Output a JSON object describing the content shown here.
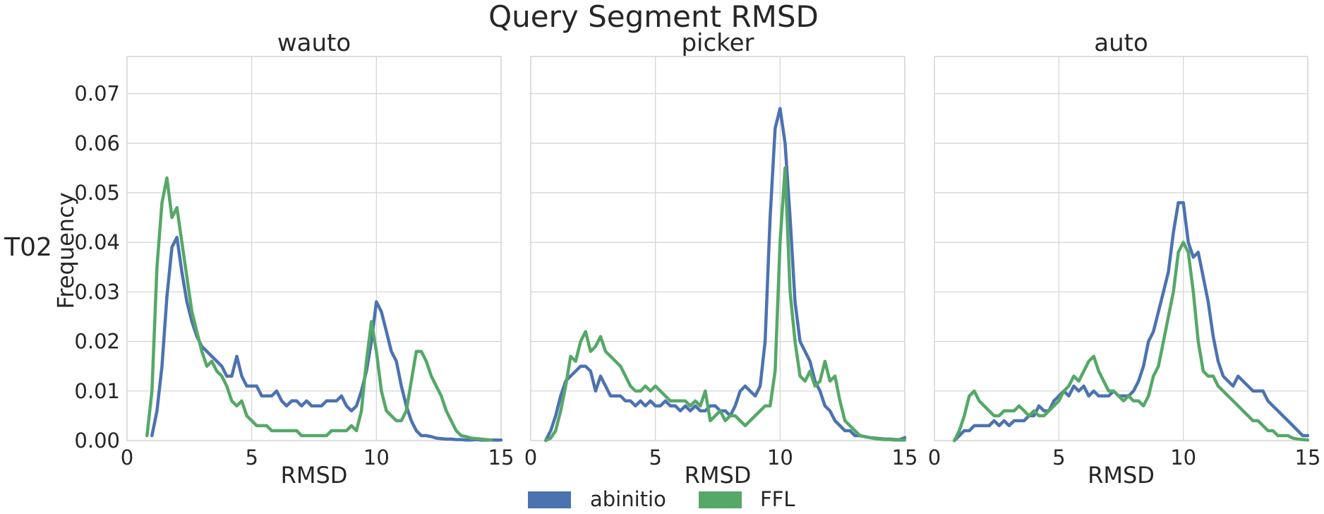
{
  "figure": {
    "title": "Query Segment RMSD",
    "row_label": "T02"
  },
  "colors": {
    "abinitio": "#4C72B0",
    "FFL": "#55A868",
    "grid": "#D3D3D3",
    "text": "#262626"
  },
  "chart_data": [
    {
      "type": "line",
      "title": "wauto",
      "xlabel": "RMSD",
      "ylabel": "Frequency",
      "xlim": [
        0,
        15
      ],
      "ylim": [
        0,
        0.0775
      ],
      "xticks": [
        "0",
        "5",
        "10",
        "15"
      ],
      "yticks": [
        "0.00",
        "0.01",
        "0.02",
        "0.03",
        "0.04",
        "0.05",
        "0.06",
        "0.07"
      ],
      "grid": true,
      "series": [
        {
          "name": "abinitio",
          "x": [
            1.0,
            1.2,
            1.4,
            1.6,
            1.8,
            2.0,
            2.2,
            2.4,
            2.6,
            2.8,
            3.0,
            3.2,
            3.4,
            3.6,
            3.8,
            4.0,
            4.2,
            4.4,
            4.6,
            4.8,
            5.0,
            5.2,
            5.4,
            5.6,
            5.8,
            6.0,
            6.2,
            6.4,
            6.6,
            6.8,
            7.0,
            7.2,
            7.4,
            7.6,
            7.8,
            8.0,
            8.2,
            8.4,
            8.6,
            8.8,
            9.0,
            9.2,
            9.4,
            9.6,
            9.8,
            10.0,
            10.2,
            10.4,
            10.6,
            10.8,
            11.0,
            11.2,
            11.4,
            11.6,
            11.8,
            12.0,
            12.2,
            12.4,
            12.6,
            12.8,
            13.0,
            13.2,
            13.4,
            13.6,
            13.8,
            14.0,
            14.2,
            14.4,
            14.6,
            14.8,
            15.0
          ],
          "y": [
            0.001,
            0.006,
            0.015,
            0.029,
            0.039,
            0.041,
            0.034,
            0.028,
            0.024,
            0.021,
            0.019,
            0.018,
            0.017,
            0.016,
            0.015,
            0.013,
            0.013,
            0.017,
            0.013,
            0.011,
            0.011,
            0.011,
            0.009,
            0.009,
            0.009,
            0.01,
            0.008,
            0.007,
            0.008,
            0.008,
            0.007,
            0.008,
            0.007,
            0.007,
            0.007,
            0.008,
            0.008,
            0.008,
            0.009,
            0.007,
            0.006,
            0.007,
            0.01,
            0.014,
            0.02,
            0.028,
            0.026,
            0.022,
            0.018,
            0.016,
            0.011,
            0.007,
            0.004,
            0.002,
            0.001,
            0.001,
            0.0008,
            0.0005,
            0.0004,
            0.0003,
            0.0003,
            0.0002,
            0.0002,
            0.0001,
            0.0001,
            0.0002,
            0.0001,
            0.0001,
            0.0001,
            0.0001,
            0.0001
          ]
        },
        {
          "name": "FFL",
          "x": [
            0.8,
            1.0,
            1.2,
            1.4,
            1.6,
            1.8,
            2.0,
            2.2,
            2.4,
            2.6,
            2.8,
            3.0,
            3.2,
            3.4,
            3.6,
            3.8,
            4.0,
            4.2,
            4.4,
            4.6,
            4.8,
            5.0,
            5.2,
            5.4,
            5.6,
            5.8,
            6.0,
            6.2,
            6.4,
            6.6,
            6.8,
            7.0,
            7.2,
            7.4,
            7.6,
            7.8,
            8.0,
            8.2,
            8.4,
            8.6,
            8.8,
            9.0,
            9.2,
            9.4,
            9.6,
            9.8,
            10.0,
            10.2,
            10.4,
            10.6,
            10.8,
            11.0,
            11.2,
            11.4,
            11.6,
            11.8,
            12.0,
            12.2,
            12.4,
            12.6,
            12.8,
            13.0,
            13.2,
            13.4,
            13.6,
            13.8,
            14.0,
            14.2,
            14.4,
            14.6
          ],
          "y": [
            0.001,
            0.01,
            0.035,
            0.048,
            0.053,
            0.045,
            0.047,
            0.04,
            0.033,
            0.026,
            0.022,
            0.018,
            0.015,
            0.016,
            0.014,
            0.013,
            0.011,
            0.008,
            0.007,
            0.008,
            0.005,
            0.004,
            0.003,
            0.003,
            0.003,
            0.002,
            0.002,
            0.002,
            0.002,
            0.002,
            0.002,
            0.001,
            0.001,
            0.001,
            0.001,
            0.001,
            0.001,
            0.002,
            0.002,
            0.002,
            0.002,
            0.003,
            0.002,
            0.006,
            0.016,
            0.024,
            0.018,
            0.01,
            0.006,
            0.005,
            0.004,
            0.004,
            0.006,
            0.012,
            0.018,
            0.018,
            0.016,
            0.013,
            0.011,
            0.009,
            0.006,
            0.004,
            0.002,
            0.001,
            0.0008,
            0.0005,
            0.0004,
            0.0003,
            0.0002,
            0.0001
          ]
        }
      ]
    },
    {
      "type": "line",
      "title": "picker",
      "xlabel": "RMSD",
      "ylabel": "",
      "xlim": [
        0,
        15
      ],
      "ylim": [
        0,
        0.0775
      ],
      "xticks": [
        "0",
        "5",
        "10",
        "15"
      ],
      "yticks": [],
      "grid": true,
      "series": [
        {
          "name": "abinitio",
          "x": [
            0.6,
            0.8,
            1.0,
            1.2,
            1.4,
            1.6,
            1.8,
            2.0,
            2.2,
            2.4,
            2.6,
            2.8,
            3.0,
            3.2,
            3.4,
            3.6,
            3.8,
            4.0,
            4.2,
            4.4,
            4.6,
            4.8,
            5.0,
            5.2,
            5.4,
            5.6,
            5.8,
            6.0,
            6.2,
            6.4,
            6.6,
            6.8,
            7.0,
            7.2,
            7.4,
            7.6,
            7.8,
            8.0,
            8.2,
            8.4,
            8.6,
            8.8,
            9.0,
            9.2,
            9.4,
            9.6,
            9.8,
            10.0,
            10.2,
            10.4,
            10.6,
            10.8,
            11.0,
            11.2,
            11.4,
            11.6,
            11.8,
            12.0,
            12.2,
            12.4,
            12.6,
            12.8,
            13.0,
            13.2,
            13.4,
            13.6,
            13.8,
            14.0,
            14.2,
            14.4,
            14.6,
            14.8,
            15.0
          ],
          "y": [
            0.0,
            0.002,
            0.005,
            0.009,
            0.012,
            0.013,
            0.014,
            0.015,
            0.015,
            0.014,
            0.01,
            0.013,
            0.011,
            0.009,
            0.009,
            0.009,
            0.008,
            0.008,
            0.007,
            0.008,
            0.007,
            0.008,
            0.007,
            0.007,
            0.008,
            0.007,
            0.007,
            0.006,
            0.007,
            0.006,
            0.007,
            0.006,
            0.006,
            0.007,
            0.007,
            0.006,
            0.006,
            0.005,
            0.007,
            0.01,
            0.011,
            0.01,
            0.009,
            0.011,
            0.02,
            0.045,
            0.063,
            0.067,
            0.06,
            0.045,
            0.028,
            0.02,
            0.018,
            0.016,
            0.012,
            0.01,
            0.007,
            0.006,
            0.004,
            0.003,
            0.002,
            0.002,
            0.001,
            0.001,
            0.0008,
            0.0006,
            0.0005,
            0.0004,
            0.0003,
            0.0003,
            0.0002,
            0.0002,
            0.0006
          ]
        },
        {
          "name": "FFL",
          "x": [
            0.6,
            0.8,
            1.0,
            1.2,
            1.4,
            1.6,
            1.8,
            2.0,
            2.2,
            2.4,
            2.6,
            2.8,
            3.0,
            3.2,
            3.4,
            3.6,
            3.8,
            4.0,
            4.2,
            4.4,
            4.6,
            4.8,
            5.0,
            5.2,
            5.4,
            5.6,
            5.8,
            6.0,
            6.2,
            6.4,
            6.6,
            6.8,
            7.0,
            7.2,
            7.4,
            7.6,
            7.8,
            8.0,
            8.2,
            8.4,
            8.6,
            8.8,
            9.0,
            9.2,
            9.4,
            9.6,
            9.8,
            10.0,
            10.2,
            10.4,
            10.6,
            10.8,
            11.0,
            11.2,
            11.4,
            11.6,
            11.8,
            12.0,
            12.2,
            12.4,
            12.6,
            12.8,
            13.0,
            13.2,
            13.4,
            13.6,
            13.8,
            14.0,
            14.2,
            14.4,
            14.6,
            14.8,
            15.0
          ],
          "y": [
            0.0,
            0.0005,
            0.002,
            0.006,
            0.011,
            0.017,
            0.016,
            0.02,
            0.022,
            0.018,
            0.019,
            0.021,
            0.018,
            0.017,
            0.016,
            0.015,
            0.013,
            0.011,
            0.01,
            0.01,
            0.011,
            0.01,
            0.011,
            0.01,
            0.009,
            0.008,
            0.008,
            0.008,
            0.008,
            0.007,
            0.008,
            0.007,
            0.01,
            0.004,
            0.005,
            0.006,
            0.004,
            0.005,
            0.005,
            0.004,
            0.003,
            0.004,
            0.005,
            0.006,
            0.007,
            0.007,
            0.014,
            0.04,
            0.055,
            0.03,
            0.02,
            0.013,
            0.012,
            0.014,
            0.011,
            0.012,
            0.016,
            0.012,
            0.013,
            0.008,
            0.004,
            0.003,
            0.002,
            0.001,
            0.0008,
            0.0006,
            0.0004,
            0.0003,
            0.0002,
            0.0002,
            0.0001,
            0.0001,
            0.0001
          ]
        }
      ]
    },
    {
      "type": "line",
      "title": "auto",
      "xlabel": "RMSD",
      "ylabel": "",
      "xlim": [
        0,
        15
      ],
      "ylim": [
        0,
        0.0775
      ],
      "xticks": [
        "0",
        "5",
        "10",
        "15"
      ],
      "yticks": [],
      "grid": true,
      "series": [
        {
          "name": "abinitio",
          "x": [
            0.8,
            1.0,
            1.2,
            1.4,
            1.6,
            1.8,
            2.0,
            2.2,
            2.4,
            2.6,
            2.8,
            3.0,
            3.2,
            3.4,
            3.6,
            3.8,
            4.0,
            4.2,
            4.4,
            4.6,
            4.8,
            5.0,
            5.2,
            5.4,
            5.6,
            5.8,
            6.0,
            6.2,
            6.4,
            6.6,
            6.8,
            7.0,
            7.2,
            7.4,
            7.6,
            7.8,
            8.0,
            8.2,
            8.4,
            8.6,
            8.8,
            9.0,
            9.2,
            9.4,
            9.6,
            9.8,
            10.0,
            10.2,
            10.4,
            10.6,
            10.8,
            11.0,
            11.2,
            11.4,
            11.6,
            11.8,
            12.0,
            12.2,
            12.4,
            12.6,
            12.8,
            13.0,
            13.2,
            13.4,
            13.6,
            13.8,
            14.0,
            14.2,
            14.4,
            14.6,
            14.8,
            15.0
          ],
          "y": [
            0.0,
            0.001,
            0.002,
            0.002,
            0.003,
            0.003,
            0.003,
            0.003,
            0.004,
            0.003,
            0.004,
            0.003,
            0.004,
            0.004,
            0.004,
            0.005,
            0.005,
            0.007,
            0.006,
            0.006,
            0.008,
            0.009,
            0.01,
            0.009,
            0.011,
            0.01,
            0.011,
            0.009,
            0.01,
            0.009,
            0.009,
            0.009,
            0.01,
            0.009,
            0.009,
            0.009,
            0.01,
            0.012,
            0.015,
            0.02,
            0.022,
            0.026,
            0.03,
            0.034,
            0.042,
            0.048,
            0.048,
            0.04,
            0.037,
            0.038,
            0.033,
            0.028,
            0.021,
            0.016,
            0.013,
            0.012,
            0.011,
            0.013,
            0.012,
            0.011,
            0.01,
            0.01,
            0.01,
            0.008,
            0.007,
            0.006,
            0.005,
            0.004,
            0.003,
            0.002,
            0.001,
            0.001
          ]
        },
        {
          "name": "FFL",
          "x": [
            0.8,
            1.0,
            1.2,
            1.4,
            1.6,
            1.8,
            2.0,
            2.2,
            2.4,
            2.6,
            2.8,
            3.0,
            3.2,
            3.4,
            3.6,
            3.8,
            4.0,
            4.2,
            4.4,
            4.6,
            4.8,
            5.0,
            5.2,
            5.4,
            5.6,
            5.8,
            6.0,
            6.2,
            6.4,
            6.6,
            6.8,
            7.0,
            7.2,
            7.4,
            7.6,
            7.8,
            8.0,
            8.2,
            8.4,
            8.6,
            8.8,
            9.0,
            9.2,
            9.4,
            9.6,
            9.8,
            10.0,
            10.2,
            10.4,
            10.6,
            10.8,
            11.0,
            11.2,
            11.4,
            11.6,
            11.8,
            12.0,
            12.2,
            12.4,
            12.6,
            12.8,
            13.0,
            13.2,
            13.4,
            13.6,
            13.8,
            14.0,
            14.2,
            14.4,
            14.6,
            14.8,
            15.0
          ],
          "y": [
            0.0,
            0.002,
            0.005,
            0.009,
            0.01,
            0.008,
            0.007,
            0.006,
            0.005,
            0.005,
            0.006,
            0.006,
            0.006,
            0.007,
            0.006,
            0.005,
            0.006,
            0.005,
            0.005,
            0.006,
            0.007,
            0.008,
            0.01,
            0.011,
            0.013,
            0.012,
            0.014,
            0.016,
            0.017,
            0.014,
            0.012,
            0.01,
            0.01,
            0.009,
            0.008,
            0.009,
            0.008,
            0.008,
            0.007,
            0.009,
            0.013,
            0.015,
            0.02,
            0.025,
            0.03,
            0.038,
            0.04,
            0.038,
            0.03,
            0.02,
            0.014,
            0.013,
            0.013,
            0.011,
            0.01,
            0.009,
            0.008,
            0.007,
            0.006,
            0.005,
            0.004,
            0.004,
            0.003,
            0.002,
            0.002,
            0.001,
            0.001,
            0.001,
            0.0005,
            0.0003,
            0.0002,
            0.0001
          ]
        }
      ]
    }
  ],
  "legend": {
    "placement": "bottom-center",
    "items": [
      {
        "label": "abinitio",
        "color": "#4C72B0"
      },
      {
        "label": "FFL",
        "color": "#55A868"
      }
    ]
  }
}
